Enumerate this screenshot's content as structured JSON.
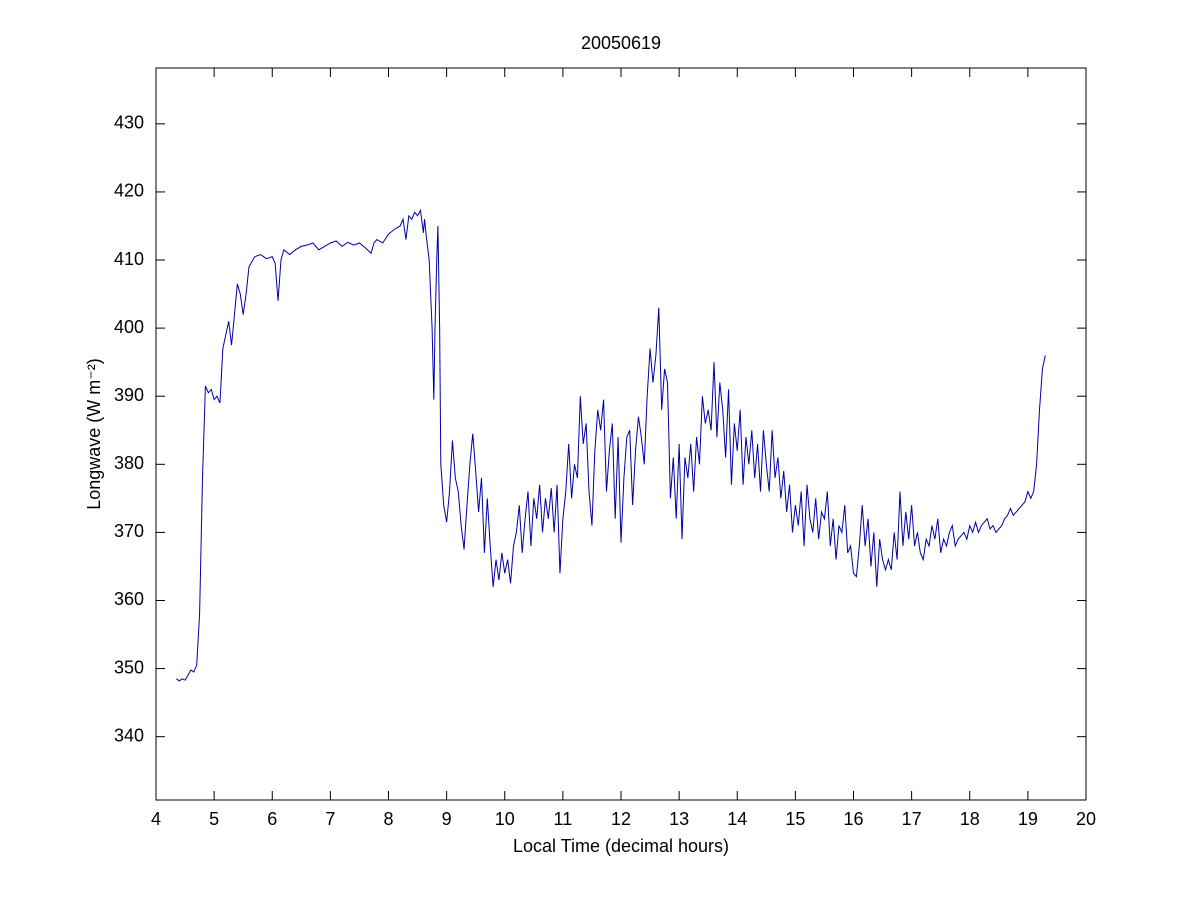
{
  "chart_data": {
    "type": "line",
    "title": "20050619",
    "x_label": "Local Time (decimal hours)",
    "y_label": "Longwave (W m⁻²)",
    "x": [
      4.35,
      4.4,
      4.45,
      4.5,
      4.55,
      4.6,
      4.65,
      4.7,
      4.75,
      4.8,
      4.85,
      4.9,
      4.95,
      5.0,
      5.05,
      5.1,
      5.15,
      5.2,
      5.25,
      5.3,
      5.35,
      5.4,
      5.45,
      5.5,
      5.55,
      5.6,
      5.7,
      5.8,
      5.9,
      6.0,
      6.05,
      6.1,
      6.15,
      6.2,
      6.3,
      6.4,
      6.5,
      6.6,
      6.7,
      6.8,
      6.9,
      7.0,
      7.1,
      7.2,
      7.3,
      7.4,
      7.5,
      7.6,
      7.7,
      7.75,
      7.8,
      7.9,
      8.0,
      8.1,
      8.2,
      8.25,
      8.3,
      8.35,
      8.4,
      8.45,
      8.5,
      8.55,
      8.6,
      8.62,
      8.65,
      8.7,
      8.75,
      8.78,
      8.8,
      8.83,
      8.85,
      8.88,
      8.9,
      8.95,
      9.0,
      9.05,
      9.1,
      9.15,
      9.2,
      9.25,
      9.3,
      9.35,
      9.4,
      9.45,
      9.5,
      9.55,
      9.6,
      9.65,
      9.7,
      9.75,
      9.8,
      9.85,
      9.9,
      9.95,
      10.0,
      10.05,
      10.1,
      10.15,
      10.2,
      10.25,
      10.3,
      10.35,
      10.4,
      10.45,
      10.5,
      10.55,
      10.6,
      10.65,
      10.7,
      10.75,
      10.8,
      10.85,
      10.9,
      10.95,
      11.0,
      11.05,
      11.1,
      11.15,
      11.2,
      11.25,
      11.3,
      11.35,
      11.4,
      11.45,
      11.5,
      11.55,
      11.6,
      11.65,
      11.7,
      11.75,
      11.8,
      11.85,
      11.9,
      11.95,
      12.0,
      12.05,
      12.1,
      12.15,
      12.2,
      12.25,
      12.3,
      12.35,
      12.4,
      12.45,
      12.5,
      12.55,
      12.6,
      12.65,
      12.7,
      12.75,
      12.8,
      12.85,
      12.9,
      12.95,
      13.0,
      13.05,
      13.1,
      13.15,
      13.2,
      13.25,
      13.3,
      13.35,
      13.4,
      13.45,
      13.5,
      13.55,
      13.6,
      13.65,
      13.7,
      13.75,
      13.8,
      13.85,
      13.9,
      13.95,
      14.0,
      14.05,
      14.1,
      14.15,
      14.2,
      14.25,
      14.3,
      14.35,
      14.4,
      14.45,
      14.5,
      14.55,
      14.6,
      14.65,
      14.7,
      14.75,
      14.8,
      14.85,
      14.9,
      14.95,
      15.0,
      15.05,
      15.1,
      15.15,
      15.2,
      15.25,
      15.3,
      15.35,
      15.4,
      15.45,
      15.5,
      15.55,
      15.6,
      15.65,
      15.7,
      15.75,
      15.8,
      15.85,
      15.9,
      15.95,
      16.0,
      16.05,
      16.1,
      16.15,
      16.2,
      16.25,
      16.3,
      16.35,
      16.4,
      16.45,
      16.5,
      16.55,
      16.6,
      16.65,
      16.7,
      16.75,
      16.8,
      16.85,
      16.9,
      16.95,
      17.0,
      17.05,
      17.1,
      17.15,
      17.2,
      17.25,
      17.3,
      17.35,
      17.4,
      17.45,
      17.5,
      17.55,
      17.6,
      17.65,
      17.7,
      17.75,
      17.8,
      17.85,
      17.9,
      17.95,
      18.0,
      18.05,
      18.1,
      18.15,
      18.2,
      18.25,
      18.3,
      18.35,
      18.4,
      18.45,
      18.5,
      18.55,
      18.6,
      18.65,
      18.7,
      18.75,
      18.8,
      18.85,
      18.9,
      18.95,
      19.0,
      19.05,
      19.1,
      19.15,
      19.2,
      19.25,
      19.3
    ],
    "series": [
      {
        "name": "Longwave",
        "color": "#0000a8",
        "values": [
          348.5,
          348.2,
          348.5,
          348.3,
          349,
          349.8,
          349.5,
          350.5,
          358,
          378,
          391.5,
          390.5,
          391,
          389.5,
          390,
          389,
          397,
          399,
          401,
          397.5,
          402,
          406.5,
          405,
          402,
          405,
          409,
          410.5,
          410.8,
          410.2,
          410.5,
          409.5,
          404,
          410,
          411.5,
          410.8,
          411.5,
          412,
          412.2,
          412.5,
          411.5,
          412,
          412.5,
          412.8,
          412,
          412.6,
          412.2,
          412.5,
          411.8,
          411,
          412.5,
          413,
          412.5,
          413.8,
          414.5,
          415,
          416,
          413,
          416.5,
          416,
          417,
          416.5,
          417.3,
          414,
          416,
          413.5,
          410,
          400,
          389.5,
          400,
          410,
          415,
          400,
          380,
          374,
          371.5,
          376,
          383.5,
          378,
          376,
          371,
          367.5,
          374,
          380,
          384.5,
          379,
          373,
          378,
          367,
          375,
          368,
          362,
          366,
          363,
          367,
          364,
          366,
          362.5,
          368,
          370,
          374,
          367,
          372,
          376,
          368,
          375,
          372,
          377,
          370,
          375,
          372,
          376.5,
          370,
          377,
          364,
          372,
          376,
          383,
          375,
          380,
          378,
          390,
          383,
          386,
          376,
          371,
          382,
          388,
          385,
          389.5,
          376,
          382,
          386,
          372,
          384,
          368.5,
          378,
          384,
          385,
          374,
          382,
          387,
          384,
          380,
          390,
          397,
          392,
          396,
          403,
          388,
          394,
          392,
          375,
          381,
          372,
          383,
          369,
          381,
          378,
          383,
          376,
          384,
          380,
          390,
          386,
          388,
          385,
          395,
          384,
          392,
          388,
          381,
          391,
          377,
          386,
          382,
          388,
          377,
          384,
          380,
          385,
          378,
          383,
          376,
          385,
          380,
          376,
          385,
          378,
          381,
          375,
          379,
          373,
          377,
          370,
          374,
          371,
          376,
          368,
          377,
          372,
          370,
          375,
          369,
          373,
          372,
          376,
          368,
          372,
          366,
          371,
          370,
          374,
          367,
          368,
          364,
          363.5,
          368,
          374,
          368,
          372,
          365,
          370,
          362,
          369,
          366,
          364.5,
          366,
          364.5,
          370,
          366,
          376,
          368,
          373,
          369,
          374,
          368,
          370,
          367,
          366,
          369,
          368,
          371,
          369,
          372,
          367,
          369,
          368,
          370,
          371,
          368,
          369,
          369.5,
          370,
          369,
          371,
          370,
          371.5,
          370,
          371,
          371.5,
          372,
          370.5,
          371,
          370,
          370.5,
          371,
          372,
          372.5,
          373.5,
          372.5,
          373,
          373.5,
          374,
          374.5,
          376,
          375,
          376,
          380,
          388,
          394,
          396
        ]
      }
    ],
    "xlim": [
      4,
      20
    ],
    "xticks": [
      4,
      5,
      6,
      7,
      8,
      9,
      10,
      11,
      12,
      13,
      14,
      15,
      16,
      17,
      18,
      19,
      20
    ],
    "ylim": [
      330.7,
      438.2
    ],
    "yticks": [
      340,
      350,
      360,
      370,
      380,
      390,
      400,
      410,
      420,
      430
    ],
    "grid": false,
    "legend": false
  }
}
